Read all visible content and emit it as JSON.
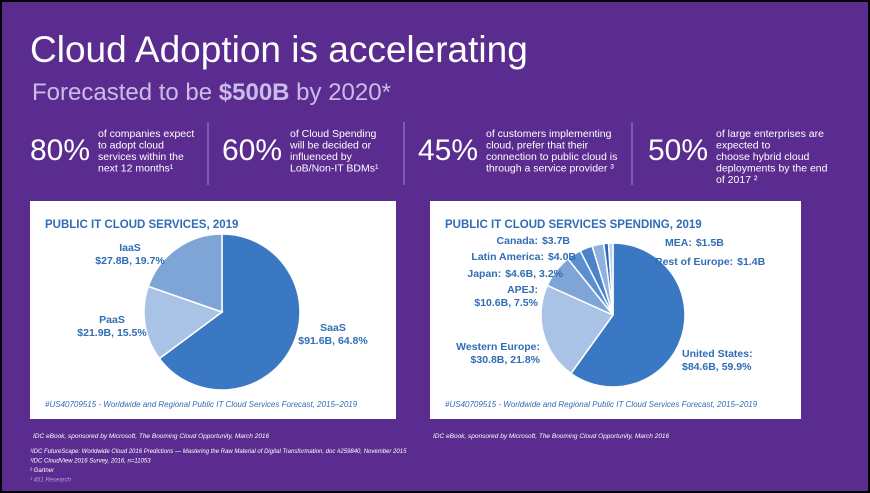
{
  "title": "Cloud Adoption is accelerating",
  "subtitle": {
    "before": "Forecasted to be ",
    "bold": "$500B",
    "after": " by 2020*"
  },
  "stats": [
    {
      "number": "80%",
      "lines": [
        "of companies expect",
        "to adopt cloud",
        "services within the",
        "next 12 months¹"
      ]
    },
    {
      "number": "60%",
      "lines": [
        "of Cloud Spending",
        "will be decided or",
        "influenced by",
        "LoB/Non-IT BDMs¹"
      ]
    },
    {
      "number": "45%",
      "lines": [
        "of customers implementing",
        "cloud, prefer that their",
        "connection to public cloud is",
        "through a service provider ³"
      ]
    },
    {
      "number": "50%",
      "lines": [
        "of large enterprises are",
        "expected to",
        "choose hybrid cloud",
        "deployments by the end",
        "of 2017 ²"
      ]
    }
  ],
  "chart_data": [
    {
      "type": "pie",
      "title": "PUBLIC IT CLOUD SERVICES, 2019",
      "categories": [
        "SaaS",
        "PaaS",
        "IaaS"
      ],
      "values": [
        91.6,
        21.9,
        27.8
      ],
      "value_labels": [
        "$91.6B, 64.8%",
        "$21.9B, 15.5%",
        "$27.8B, 19.7%"
      ],
      "colors": [
        "#3b78c3",
        "#a8c3e5",
        "#7ea5d6"
      ],
      "source": "#US40709515 - Worldwide and Regional Public IT Cloud Services Forecast, 2015–2019",
      "caption": "IDC eBook, sponsored by Microsoft, The Booming Cloud Opportunity, March 2016"
    },
    {
      "type": "pie",
      "title": "PUBLIC IT CLOUD SERVICES SPENDING, 2019",
      "categories": [
        "United States:",
        "Western Europe:",
        "APEJ:",
        "Japan:",
        "Latin America:",
        "Canada:",
        "MEA:",
        "Rest of Europe:"
      ],
      "values": [
        84.6,
        30.8,
        10.6,
        4.6,
        4.0,
        3.7,
        1.5,
        1.4
      ],
      "value_labels": [
        "$84.6B, 59.9%",
        "$30.8B, 21.8%",
        "$10.6B, 7.5%",
        "$4.6B, 3.2%",
        "$4.0B",
        "$3.7B",
        "$1.5B",
        "$1.4B"
      ],
      "colors": [
        "#3b78c3",
        "#a8c3e5",
        "#7ea5d6",
        "#5c8fcf",
        "#4a83ca",
        "#8fb1dc",
        "#2f68b3",
        "#b9d0ec"
      ],
      "source": "#US40709515 - Worldwide and Regional Public IT Cloud Services Forecast, 2015–2019",
      "caption": "IDC eBook, sponsored by Microsoft, The Booming Cloud Opportunity, March 2016"
    }
  ],
  "footnotes": [
    "¹IDC FutureScape: Worldwide Cloud 2016 Predictions — Mastering the Raw Material of Digital Transformation, doc #259840, November 2015",
    "¹IDC CloudView 2016 Survey, 2016, n=11053",
    "² Gartner",
    "³ 451 Research"
  ]
}
